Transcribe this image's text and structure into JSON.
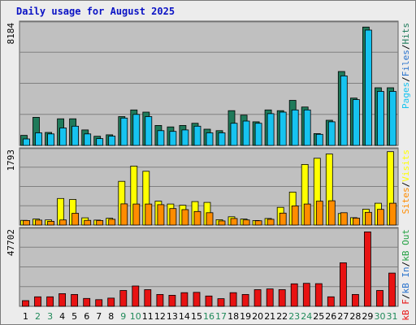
{
  "title": "Daily usage for August 2025",
  "colors": {
    "background": "#ececec",
    "plot_background": "#c0c0c0",
    "gridline": "#808080",
    "hits": "#1f7a5a",
    "files": "#16c3f0",
    "pages": "#16c3f0",
    "visits": "#ffff00",
    "sites": "#ff8c00",
    "kb_in": "#2a73cc",
    "kb_out": "#20a040",
    "kb_f": "#e81212",
    "title": "#0b13c5",
    "weekend_label": "#208a5a",
    "weekday_label": "#000000"
  },
  "chart_data": [
    {
      "type": "bar",
      "panel": "top",
      "y_max_label": "8184",
      "ylim": [
        0,
        8184
      ],
      "categories": [
        "1",
        "2",
        "3",
        "4",
        "5",
        "6",
        "7",
        "8",
        "9",
        "10",
        "11",
        "12",
        "13",
        "14",
        "15",
        "16",
        "17",
        "18",
        "19",
        "20",
        "21",
        "22",
        "23",
        "24",
        "25",
        "26",
        "27",
        "28",
        "29",
        "30",
        "31"
      ],
      "legend_label": {
        "pages": "Pages",
        "sep1": "/",
        "files": "Files",
        "sep2": "/",
        "hits": "Hits"
      },
      "series": [
        {
          "name": "Hits",
          "values": [
            680,
            1900,
            880,
            1800,
            1800,
            1050,
            620,
            720,
            1950,
            2400,
            2250,
            1350,
            1250,
            1350,
            1500,
            1100,
            1000,
            2350,
            2050,
            1600,
            2400,
            2350,
            3050,
            2600,
            800,
            1700,
            5000,
            3200,
            8000,
            3900,
            3900
          ]
        },
        {
          "name": "Files",
          "values": [
            440,
            850,
            780,
            1180,
            1300,
            780,
            460,
            630,
            1850,
            2100,
            1950,
            1000,
            950,
            1050,
            1300,
            850,
            850,
            1500,
            1650,
            1500,
            2150,
            2250,
            2400,
            2400,
            750,
            1600,
            4700,
            3100,
            7800,
            3650,
            3650
          ]
        }
      ]
    },
    {
      "type": "bar",
      "panel": "middle",
      "y_max_label": "1793",
      "ylim": [
        0,
        1793
      ],
      "categories": [
        "1",
        "2",
        "3",
        "4",
        "5",
        "6",
        "7",
        "8",
        "9",
        "10",
        "11",
        "12",
        "13",
        "14",
        "15",
        "16",
        "17",
        "18",
        "19",
        "20",
        "21",
        "22",
        "23",
        "24",
        "25",
        "26",
        "27",
        "28",
        "29",
        "30",
        "31"
      ],
      "legend_label": {
        "visits": "Visits",
        "sep1": "/",
        "sites": "Sites"
      },
      "series": [
        {
          "name": "Visits",
          "values": [
            115,
            145,
            125,
            645,
            620,
            175,
            120,
            165,
            1060,
            1430,
            1305,
            580,
            510,
            480,
            570,
            550,
            130,
            200,
            145,
            110,
            160,
            430,
            800,
            1470,
            1620,
            1725,
            280,
            180,
            385,
            530,
            1780
          ]
        },
        {
          "name": "Sites",
          "values": [
            110,
            120,
            90,
            125,
            285,
            115,
            110,
            140,
            515,
            510,
            510,
            495,
            400,
            375,
            330,
            300,
            100,
            160,
            125,
            105,
            140,
            290,
            465,
            510,
            580,
            590,
            300,
            170,
            310,
            380,
            530
          ]
        }
      ]
    },
    {
      "type": "bar",
      "panel": "bottom",
      "y_max_label": "47702",
      "ylim": [
        0,
        47702
      ],
      "categories": [
        "1",
        "2",
        "3",
        "4",
        "5",
        "6",
        "7",
        "8",
        "9",
        "10",
        "11",
        "12",
        "13",
        "14",
        "15",
        "16",
        "17",
        "18",
        "19",
        "20",
        "21",
        "22",
        "23",
        "24",
        "25",
        "26",
        "27",
        "28",
        "29",
        "30",
        "31"
      ],
      "legend_label": {
        "kbf": "kB F",
        "sep1": "/",
        "kbin": "kB In",
        "sep2": "/",
        "kbout": "kB Out"
      },
      "series": [
        {
          "name": "kB F",
          "values": [
            3600,
            6000,
            6000,
            8000,
            7500,
            5000,
            4200,
            5200,
            10000,
            12800,
            10500,
            7500,
            7000,
            8600,
            8800,
            6500,
            4800,
            8600,
            7500,
            10500,
            11000,
            10500,
            14200,
            14500,
            14300,
            6000,
            27500,
            7500,
            47000,
            10000,
            21000
          ]
        }
      ]
    }
  ],
  "x_labels": [
    "1",
    "2",
    "3",
    "4",
    "5",
    "6",
    "7",
    "8",
    "9",
    "10",
    "11",
    "12",
    "13",
    "14",
    "15",
    "16",
    "17",
    "18",
    "19",
    "20",
    "21",
    "22",
    "23",
    "24",
    "25",
    "26",
    "27",
    "28",
    "29",
    "30",
    "31"
  ],
  "weekend_days": [
    "2",
    "3",
    "9",
    "10",
    "16",
    "17",
    "23",
    "24",
    "30",
    "31"
  ]
}
